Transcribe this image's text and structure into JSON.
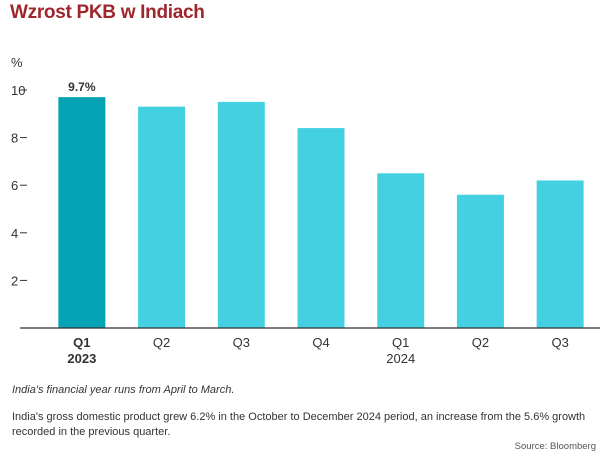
{
  "title": "Wzrost PKB w Indiach",
  "chart_data": {
    "type": "bar",
    "ylabel": "%",
    "ylim": [
      0,
      10
    ],
    "yticks": [
      2,
      4,
      6,
      8,
      10
    ],
    "grid": false,
    "categories": [
      {
        "label": "Q1",
        "sub": "2023"
      },
      {
        "label": "Q2",
        "sub": ""
      },
      {
        "label": "Q3",
        "sub": ""
      },
      {
        "label": "Q4",
        "sub": ""
      },
      {
        "label": "Q1",
        "sub": "2024"
      },
      {
        "label": "Q2",
        "sub": ""
      },
      {
        "label": "Q3",
        "sub": ""
      }
    ],
    "values": [
      9.7,
      9.3,
      9.5,
      8.4,
      6.5,
      5.6,
      6.2
    ],
    "highlight_index": 0,
    "highlight_label": "9.7%",
    "colors": {
      "bar": "#43d1e2",
      "highlight": "#05a3b6",
      "axis": "#333333"
    }
  },
  "footnote": "India's financial year runs from April to March.",
  "description": "India's gross domestic product grew 6.2% in the October to December 2024 period, an increase from the 5.6% growth recorded in the previous quarter.",
  "source": "Source: Bloomberg"
}
